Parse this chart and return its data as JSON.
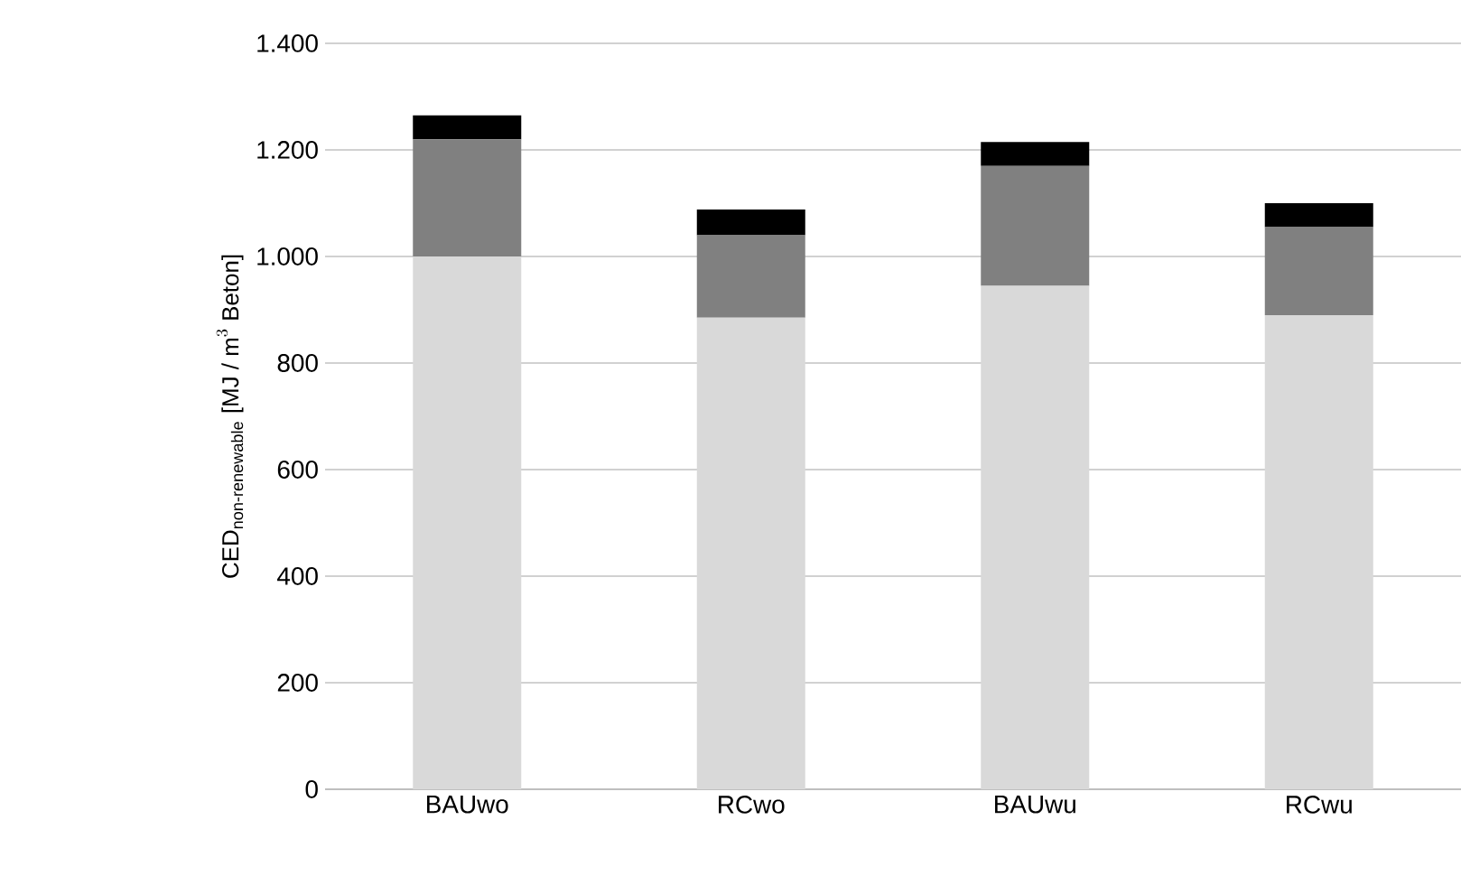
{
  "chart_data": {
    "type": "bar",
    "stacked": true,
    "ylabel": "\\text{CED}_{\\text{non-renewable}}\\text{ [MJ / m}^{3}\\text{ Beton]}",
    "categories": [
      "BAUwo",
      "RCwo",
      "BAUwu",
      "RCwu"
    ],
    "series": [
      {
        "color": "#d9d9d9",
        "values": [
          1000,
          885,
          945,
          890
        ]
      },
      {
        "color": "#808080",
        "values": [
          220,
          155,
          225,
          165
        ]
      },
      {
        "color": "#000000",
        "values": [
          45,
          48,
          45,
          45
        ]
      }
    ],
    "ylim": [
      0,
      1400
    ],
    "yticks": [
      0,
      200,
      400,
      600,
      800,
      {
        "value": 1000,
        "label": "1.000"
      },
      {
        "value": 1200,
        "label": "1.200"
      },
      {
        "value": 1400,
        "label": "1.400"
      }
    ],
    "grid": "y"
  }
}
